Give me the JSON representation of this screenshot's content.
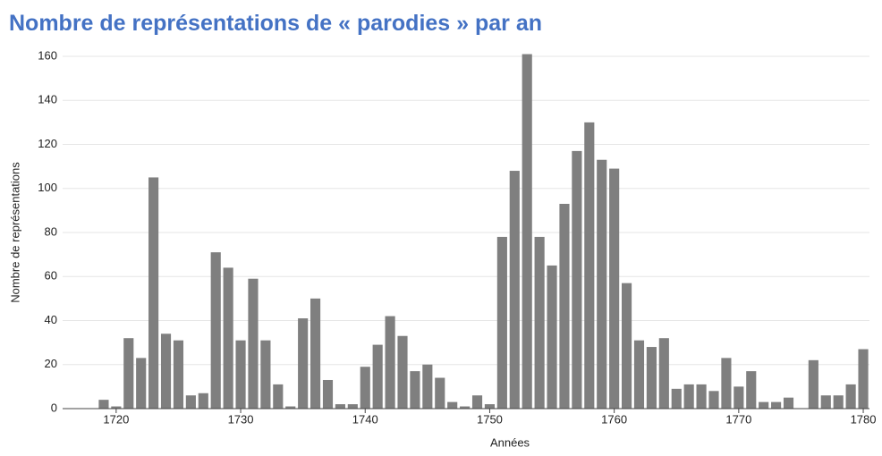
{
  "chart_data": {
    "type": "bar",
    "title": "Nombre de représentations de « parodies » par an",
    "xlabel": "Années",
    "ylabel": "Nombre de représentations",
    "x": [
      1719,
      1720,
      1721,
      1722,
      1723,
      1724,
      1725,
      1726,
      1727,
      1728,
      1729,
      1730,
      1731,
      1732,
      1733,
      1734,
      1735,
      1736,
      1737,
      1738,
      1739,
      1740,
      1741,
      1742,
      1743,
      1744,
      1745,
      1746,
      1747,
      1748,
      1749,
      1750,
      1751,
      1752,
      1753,
      1754,
      1755,
      1756,
      1757,
      1758,
      1759,
      1760,
      1761,
      1762,
      1763,
      1764,
      1765,
      1766,
      1767,
      1768,
      1769,
      1770,
      1771,
      1772,
      1773,
      1774,
      1775,
      1776,
      1777,
      1778,
      1779,
      1780
    ],
    "values": [
      4,
      1,
      32,
      23,
      105,
      34,
      31,
      6,
      7,
      71,
      64,
      31,
      59,
      31,
      11,
      1,
      41,
      50,
      13,
      2,
      2,
      19,
      29,
      42,
      33,
      17,
      20,
      14,
      3,
      1,
      6,
      2,
      78,
      108,
      161,
      78,
      65,
      93,
      117,
      130,
      113,
      109,
      57,
      31,
      28,
      32,
      9,
      11,
      11,
      8,
      23,
      10,
      17,
      3,
      3,
      5,
      0,
      22,
      6,
      6,
      11,
      27
    ],
    "color": "#7f7f7f",
    "xlim": [
      1715.7,
      1780.5
    ],
    "xticks": [
      1720,
      1730,
      1740,
      1750,
      1760,
      1770,
      1780
    ],
    "ylim": [
      0,
      160
    ],
    "yticks": [
      0,
      20,
      40,
      60,
      80,
      100,
      120,
      140,
      160
    ],
    "grid": true
  }
}
